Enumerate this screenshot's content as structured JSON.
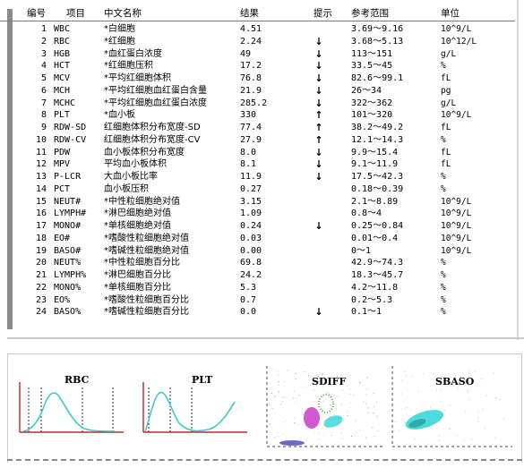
{
  "report": {
    "headers": {
      "no": "编号",
      "item": "项目",
      "name": "中文名称",
      "result": "结果",
      "flag": "提示",
      "reference": "参考范围",
      "unit": "单位"
    },
    "rows": [
      {
        "no": "1",
        "item": "WBC",
        "name": "*白细胞",
        "result": "4.51",
        "flag": "",
        "reference": "3.69～9.16",
        "unit": "10^9/L"
      },
      {
        "no": "2",
        "item": "RBC",
        "name": "*红细胞",
        "result": "2.24",
        "flag": "↓",
        "reference": "3.68～5.13",
        "unit": "10^12/L"
      },
      {
        "no": "3",
        "item": "HGB",
        "name": "*血红蛋白浓度",
        "result": "49",
        "flag": "↓",
        "reference": "113～151",
        "unit": "g/L"
      },
      {
        "no": "4",
        "item": "HCT",
        "name": "*红细胞压积",
        "result": "17.2",
        "flag": "↓",
        "reference": "33.5～45",
        "unit": "%"
      },
      {
        "no": "5",
        "item": "MCV",
        "name": "*平均红细胞体积",
        "result": "76.8",
        "flag": "↓",
        "reference": "82.6～99.1",
        "unit": "fL"
      },
      {
        "no": "6",
        "item": "MCH",
        "name": "*平均红细胞血红蛋白含量",
        "result": "21.9",
        "flag": "↓",
        "reference": "26～34",
        "unit": "pg"
      },
      {
        "no": "7",
        "item": "MCHC",
        "name": "*平均红细胞血红蛋白浓度",
        "result": "285.2",
        "flag": "↓",
        "reference": "322～362",
        "unit": "g/L"
      },
      {
        "no": "8",
        "item": "PLT",
        "name": "*血小板",
        "result": "330",
        "flag": "↑",
        "reference": "101～320",
        "unit": "10^9/L"
      },
      {
        "no": "9",
        "item": "RDW-SD",
        "name": "红细胞体积分布宽度-SD",
        "result": "77.4",
        "flag": "↑",
        "reference": "38.2～49.2",
        "unit": "fL"
      },
      {
        "no": "10",
        "item": "RDW-CV",
        "name": "红细胞体积分布宽度-CV",
        "result": "27.9",
        "flag": "↑",
        "reference": "12.1～14.3",
        "unit": "%"
      },
      {
        "no": "11",
        "item": "PDW",
        "name": "血小板体积分布宽度",
        "result": "8.0",
        "flag": "↓",
        "reference": "9.9～15.4",
        "unit": "fL"
      },
      {
        "no": "12",
        "item": "MPV",
        "name": "平均血小板体积",
        "result": "8.1",
        "flag": "↓",
        "reference": "9.1～11.9",
        "unit": "fL"
      },
      {
        "no": "13",
        "item": "P-LCR",
        "name": "大血小板比率",
        "result": "11.9",
        "flag": "↓",
        "reference": "17.5～42.3",
        "unit": "%"
      },
      {
        "no": "14",
        "item": "PCT",
        "name": "血小板压积",
        "result": "0.27",
        "flag": "",
        "reference": "0.18～0.39",
        "unit": "%"
      },
      {
        "no": "15",
        "item": "NEUT#",
        "name": "*中性粒细胞绝对值",
        "result": "3.15",
        "flag": "",
        "reference": "2.1～8.89",
        "unit": "10^9/L"
      },
      {
        "no": "16",
        "item": "LYMPH#",
        "name": "*淋巴细胞绝对值",
        "result": "1.09",
        "flag": "",
        "reference": "0.8～4",
        "unit": "10^9/L"
      },
      {
        "no": "17",
        "item": "MONO#",
        "name": "*单核细胞绝对值",
        "result": "0.24",
        "flag": "↓",
        "reference": "0.25～0.84",
        "unit": "10^9/L"
      },
      {
        "no": "18",
        "item": "EO#",
        "name": "*嗜酸性粒细胞绝对值",
        "result": "0.03",
        "flag": "",
        "reference": "0.01～0.4",
        "unit": "10^9/L"
      },
      {
        "no": "19",
        "item": "BASO#",
        "name": "*嗜碱性粒细胞绝对值",
        "result": "0.00",
        "flag": "",
        "reference": "0～1",
        "unit": "10^9/L"
      },
      {
        "no": "20",
        "item": "NEUT%",
        "name": "*中性粒细胞百分比",
        "result": "69.8",
        "flag": "",
        "reference": "42.9～74.3",
        "unit": "%"
      },
      {
        "no": "21",
        "item": "LYMPH%",
        "name": "*淋巴细胞百分比",
        "result": "24.2",
        "flag": "",
        "reference": "18.3～45.7",
        "unit": "%"
      },
      {
        "no": "22",
        "item": "MONO%",
        "name": "*单核细胞百分比",
        "result": "5.3",
        "flag": "",
        "reference": "4.2～11.8",
        "unit": "%"
      },
      {
        "no": "23",
        "item": "EO%",
        "name": "*嗜酸性粒细胞百分比",
        "result": "0.7",
        "flag": "",
        "reference": "0.2～5.3",
        "unit": "%"
      },
      {
        "no": "24",
        "item": "BASO%",
        "name": "*嗜碱性粒细胞百分比",
        "result": "0.0",
        "flag": "↓",
        "reference": "0.1～1",
        "unit": "%"
      }
    ]
  },
  "histograms": {
    "rbc_title": "RBC",
    "plt_title": "PLT",
    "sdiff_title": "SDIFF",
    "sbaso_title": "SBASO"
  },
  "colors": {
    "curve": "#3ecbcb",
    "axis": "#b00000",
    "scatter_cyan": "#2fd4d4",
    "scatter_magenta": "#c020c0",
    "scatter_green": "#49b049",
    "scatter_blue": "#2a2ab0",
    "scatter_yellow": "#d0d040"
  }
}
